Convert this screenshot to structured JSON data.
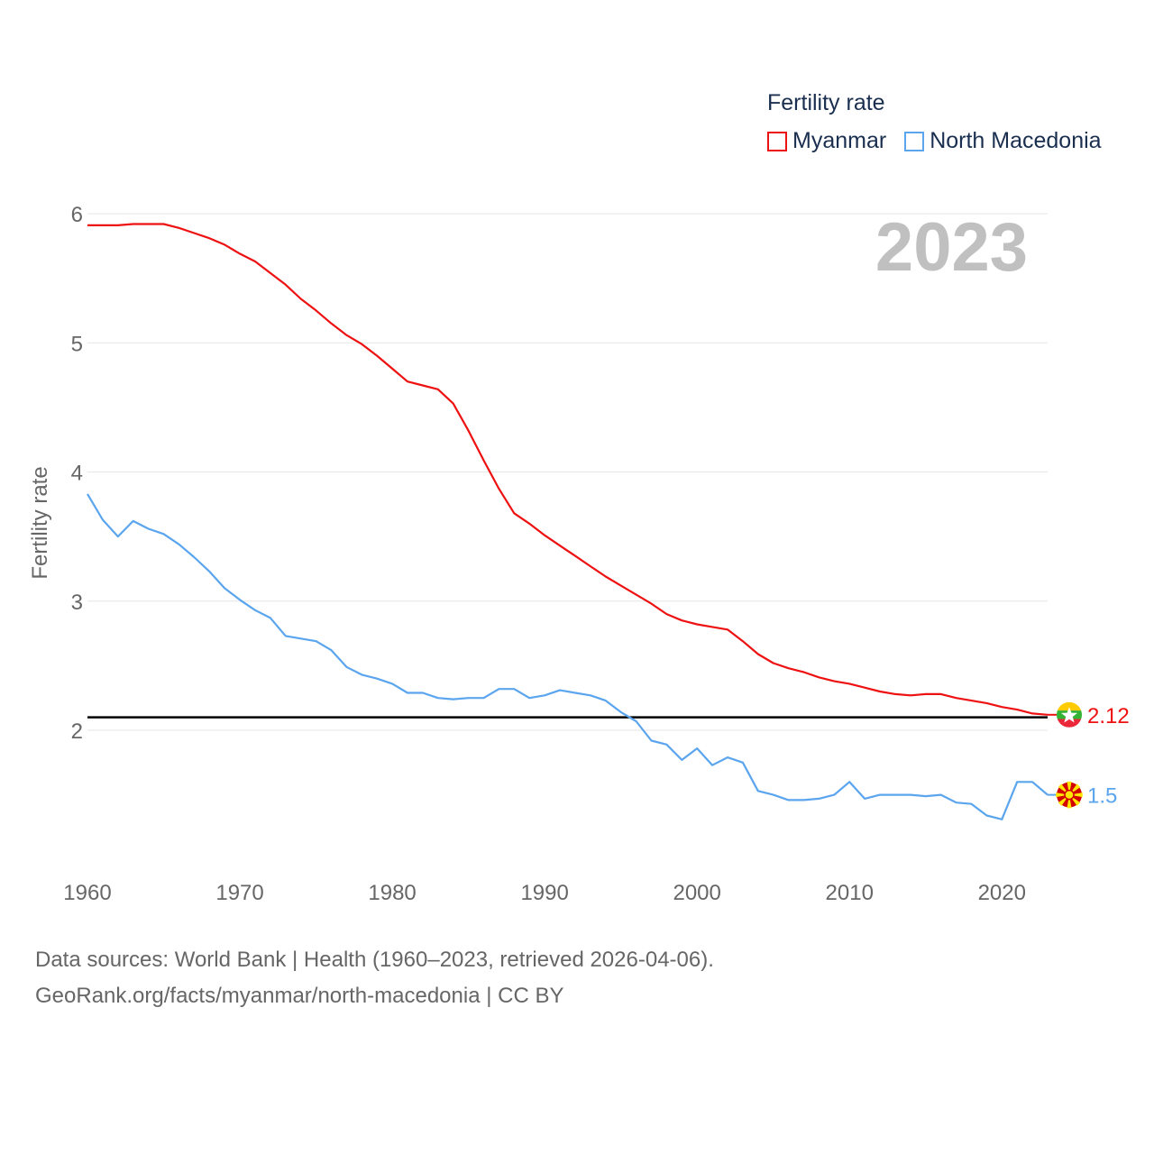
{
  "chart_data": {
    "type": "line",
    "ylabel": "Fertility rate",
    "xlabel": "",
    "year_label": "2023",
    "legend_title": "Fertility rate",
    "legend_position": "top-right",
    "xlim": [
      1960,
      2023
    ],
    "ylim": [
      1.0,
      6.2
    ],
    "x_ticks": [
      1960,
      1970,
      1980,
      1990,
      2000,
      2010,
      2020
    ],
    "y_ticks": [
      2,
      3,
      4,
      5,
      6
    ],
    "grid": true,
    "reference_line": 2.1,
    "x": [
      1960,
      1961,
      1962,
      1963,
      1964,
      1965,
      1966,
      1967,
      1968,
      1969,
      1970,
      1971,
      1972,
      1973,
      1974,
      1975,
      1976,
      1977,
      1978,
      1979,
      1980,
      1981,
      1982,
      1983,
      1984,
      1985,
      1986,
      1987,
      1988,
      1989,
      1990,
      1991,
      1992,
      1993,
      1994,
      1995,
      1996,
      1997,
      1998,
      1999,
      2000,
      2001,
      2002,
      2003,
      2004,
      2005,
      2006,
      2007,
      2008,
      2009,
      2010,
      2011,
      2012,
      2013,
      2014,
      2015,
      2016,
      2017,
      2018,
      2019,
      2020,
      2021,
      2022,
      2023
    ],
    "series": [
      {
        "name": "Myanmar",
        "color": "#ee1111",
        "end_label": "2.12",
        "values": [
          5.91,
          5.91,
          5.91,
          5.92,
          5.92,
          5.92,
          5.89,
          5.85,
          5.81,
          5.76,
          5.69,
          5.63,
          5.54,
          5.45,
          5.34,
          5.25,
          5.15,
          5.06,
          4.99,
          4.9,
          4.8,
          4.7,
          4.67,
          4.64,
          4.53,
          4.32,
          4.09,
          3.87,
          3.68,
          3.6,
          3.51,
          3.43,
          3.35,
          3.27,
          3.19,
          3.12,
          3.05,
          2.98,
          2.9,
          2.85,
          2.82,
          2.8,
          2.78,
          2.69,
          2.59,
          2.52,
          2.48,
          2.45,
          2.41,
          2.38,
          2.36,
          2.33,
          2.3,
          2.28,
          2.27,
          2.28,
          2.28,
          2.25,
          2.23,
          2.21,
          2.18,
          2.16,
          2.13,
          2.12
        ]
      },
      {
        "name": "North Macedonia",
        "color": "#5aa5ee",
        "end_label": "1.5",
        "values": [
          3.83,
          3.63,
          3.5,
          3.62,
          3.56,
          3.52,
          3.44,
          3.34,
          3.23,
          3.1,
          3.01,
          2.93,
          2.87,
          2.73,
          2.71,
          2.69,
          2.62,
          2.49,
          2.43,
          2.4,
          2.36,
          2.29,
          2.29,
          2.25,
          2.24,
          2.25,
          2.25,
          2.32,
          2.32,
          2.25,
          2.27,
          2.31,
          2.29,
          2.27,
          2.23,
          2.14,
          2.07,
          1.92,
          1.89,
          1.77,
          1.86,
          1.73,
          1.79,
          1.75,
          1.53,
          1.5,
          1.46,
          1.46,
          1.47,
          1.5,
          1.6,
          1.47,
          1.5,
          1.5,
          1.5,
          1.49,
          1.5,
          1.44,
          1.43,
          1.34,
          1.31,
          1.6,
          1.6,
          1.5
        ]
      }
    ]
  },
  "source": {
    "line1": "Data sources: World Bank | Health (1960–2023, retrieved 2026-04-06).",
    "line2": "GeoRank.org/facts/myanmar/north-macedonia | CC BY"
  }
}
